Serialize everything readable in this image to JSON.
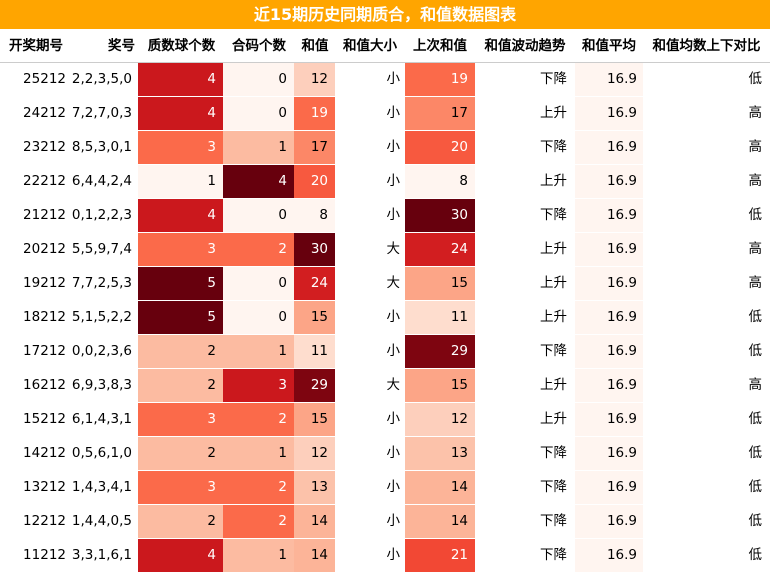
{
  "title": "近15期历史同期质合，和值数据图表",
  "headers": [
    "开奖期号",
    "奖号",
    "质数球个数",
    "合码个数",
    "和值",
    "和值大小",
    "上次和值",
    "和值波动趋势",
    "和值平均",
    "和值均数上下对比"
  ],
  "chart_data": {
    "type": "table",
    "columns": [
      "开奖期号",
      "奖号",
      "质数球个数",
      "合码个数",
      "和值",
      "和值大小",
      "上次和值",
      "和值波动趋势",
      "和值平均",
      "和值均数上下对比"
    ],
    "rows": [
      {
        "period": "25212",
        "numbers": "2,2,3,5,0",
        "primes": 4,
        "composites": 0,
        "sum": 12,
        "size": "小",
        "prev_sum": 19,
        "trend": "下降",
        "avg": "16.9",
        "compare": "低"
      },
      {
        "period": "24212",
        "numbers": "7,2,7,0,3",
        "primes": 4,
        "composites": 0,
        "sum": 19,
        "size": "小",
        "prev_sum": 17,
        "trend": "上升",
        "avg": "16.9",
        "compare": "高"
      },
      {
        "period": "23212",
        "numbers": "8,5,3,0,1",
        "primes": 3,
        "composites": 1,
        "sum": 17,
        "size": "小",
        "prev_sum": 20,
        "trend": "下降",
        "avg": "16.9",
        "compare": "高"
      },
      {
        "period": "22212",
        "numbers": "6,4,4,2,4",
        "primes": 1,
        "composites": 4,
        "sum": 20,
        "size": "小",
        "prev_sum": 8,
        "trend": "上升",
        "avg": "16.9",
        "compare": "高"
      },
      {
        "period": "21212",
        "numbers": "0,1,2,2,3",
        "primes": 4,
        "composites": 0,
        "sum": 8,
        "size": "小",
        "prev_sum": 30,
        "trend": "下降",
        "avg": "16.9",
        "compare": "低"
      },
      {
        "period": "20212",
        "numbers": "5,5,9,7,4",
        "primes": 3,
        "composites": 2,
        "sum": 30,
        "size": "大",
        "prev_sum": 24,
        "trend": "上升",
        "avg": "16.9",
        "compare": "高"
      },
      {
        "period": "19212",
        "numbers": "7,7,2,5,3",
        "primes": 5,
        "composites": 0,
        "sum": 24,
        "size": "大",
        "prev_sum": 15,
        "trend": "上升",
        "avg": "16.9",
        "compare": "高"
      },
      {
        "period": "18212",
        "numbers": "5,1,5,2,2",
        "primes": 5,
        "composites": 0,
        "sum": 15,
        "size": "小",
        "prev_sum": 11,
        "trend": "上升",
        "avg": "16.9",
        "compare": "低"
      },
      {
        "period": "17212",
        "numbers": "0,0,2,3,6",
        "primes": 2,
        "composites": 1,
        "sum": 11,
        "size": "小",
        "prev_sum": 29,
        "trend": "下降",
        "avg": "16.9",
        "compare": "低"
      },
      {
        "period": "16212",
        "numbers": "6,9,3,8,3",
        "primes": 2,
        "composites": 3,
        "sum": 29,
        "size": "大",
        "prev_sum": 15,
        "trend": "上升",
        "avg": "16.9",
        "compare": "高"
      },
      {
        "period": "15212",
        "numbers": "6,1,4,3,1",
        "primes": 3,
        "composites": 2,
        "sum": 15,
        "size": "小",
        "prev_sum": 12,
        "trend": "上升",
        "avg": "16.9",
        "compare": "低"
      },
      {
        "period": "14212",
        "numbers": "0,5,6,1,0",
        "primes": 2,
        "composites": 1,
        "sum": 12,
        "size": "小",
        "prev_sum": 13,
        "trend": "下降",
        "avg": "16.9",
        "compare": "低"
      },
      {
        "period": "13212",
        "numbers": "1,4,3,4,1",
        "primes": 3,
        "composites": 2,
        "sum": 13,
        "size": "小",
        "prev_sum": 14,
        "trend": "下降",
        "avg": "16.9",
        "compare": "低"
      },
      {
        "period": "12212",
        "numbers": "1,4,4,0,5",
        "primes": 2,
        "composites": 2,
        "sum": 14,
        "size": "小",
        "prev_sum": 14,
        "trend": "下降",
        "avg": "16.9",
        "compare": "低"
      },
      {
        "period": "11212",
        "numbers": "3,3,1,6,1",
        "primes": 4,
        "composites": 1,
        "sum": 14,
        "size": "小",
        "prev_sum": 21,
        "trend": "下降",
        "avg": "16.9",
        "compare": "低"
      }
    ]
  },
  "colors": {
    "title_bg": "#ffa500",
    "title_fg": "#ffffff",
    "heat_scale": [
      "#fff5f0",
      "#fee0d2",
      "#fcbba1",
      "#fc9272",
      "#fb6a4a",
      "#ef3b2c",
      "#cb181d",
      "#a50f15",
      "#67000d"
    ],
    "avg_bg": "#fff5f0"
  }
}
